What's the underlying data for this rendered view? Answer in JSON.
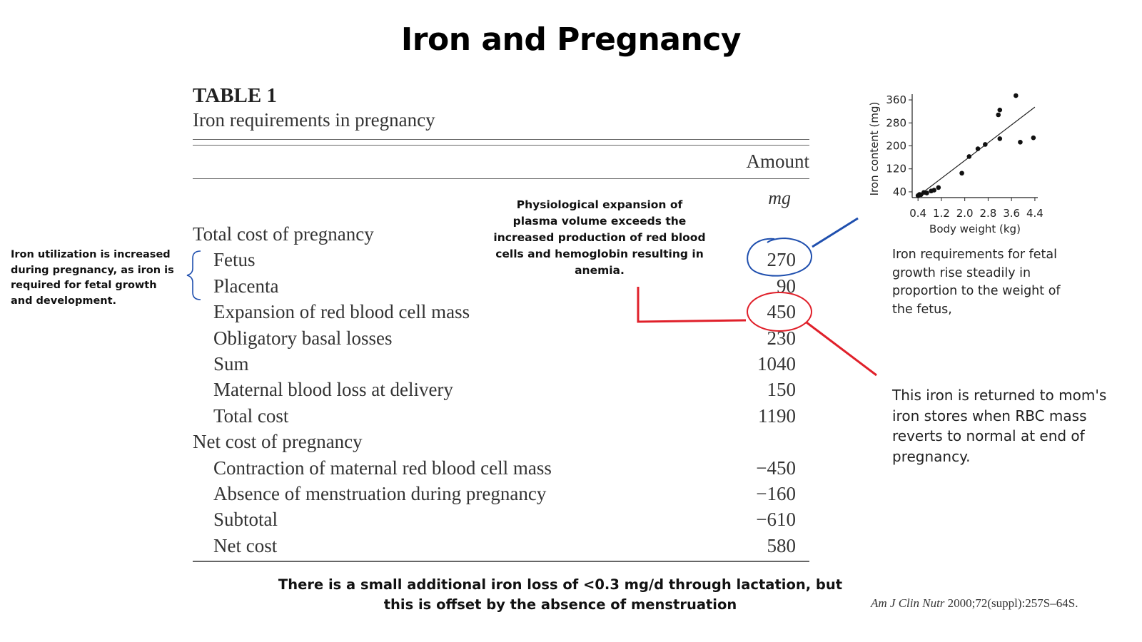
{
  "title": "Iron and Pregnancy",
  "table": {
    "label": "TABLE 1",
    "caption": "Iron requirements in pregnancy",
    "column_header": "Amount",
    "unit": "mg",
    "rows": [
      {
        "label": "Total cost of pregnancy",
        "value": "",
        "indent": false
      },
      {
        "label": "Fetus",
        "value": "270",
        "indent": true
      },
      {
        "label": "Placenta",
        "value": "90",
        "indent": true
      },
      {
        "label": "Expansion of red blood cell mass",
        "value": "450",
        "indent": true
      },
      {
        "label": "Obligatory basal losses",
        "value": "230",
        "indent": true
      },
      {
        "label": "Sum",
        "value": "1040",
        "indent": true
      },
      {
        "label": "Maternal blood loss at delivery",
        "value": "150",
        "indent": true
      },
      {
        "label": "Total cost",
        "value": "1190",
        "indent": true
      },
      {
        "label": "Net cost of pregnancy",
        "value": "",
        "indent": false
      },
      {
        "label": "Contraction of maternal red blood cell mass",
        "value": "−450",
        "indent": true
      },
      {
        "label": "Absence of menstruation during pregnancy",
        "value": "−160",
        "indent": true
      },
      {
        "label": "Subtotal",
        "value": "−610",
        "indent": true
      },
      {
        "label": "Net cost",
        "value": "580",
        "indent": true
      }
    ]
  },
  "notes": {
    "left": "Iron utilization is increased during pregnancy, as iron is required for fetal growth and development.",
    "middle": "Physiological expansion of plasma volume exceeds the increased production of red blood cells and hemoglobin resulting in anemia.",
    "right_top": "Iron requirements for fetal growth rise steadily in proportion to the weight of the fetus,",
    "right_bottom": "This iron is returned to mom's iron stores when RBC mass reverts to normal at end of pregnancy.",
    "bottom": "There is a small additional iron loss of <0.3 mg/d through lactation, but this is offset by the absence of menstruation"
  },
  "citation": {
    "journal": "Am J Clin Nutr",
    "details": " 2000;72(suppl):257S–64S."
  },
  "colors": {
    "blue_annotation": "#1f4fae",
    "red_annotation": "#e0202a"
  },
  "chart_data": {
    "type": "scatter",
    "xlabel": "Body weight (kg)",
    "ylabel": "Iron content (mg)",
    "xlim": [
      0.2,
      4.5
    ],
    "ylim": [
      20,
      380
    ],
    "xticks": [
      "0.4",
      "1.2",
      "2.0",
      "2.8",
      "3.6",
      "4.4"
    ],
    "yticks": [
      "40",
      "120",
      "200",
      "280",
      "360"
    ],
    "points": [
      {
        "x": 0.4,
        "y": 27
      },
      {
        "x": 0.45,
        "y": 31
      },
      {
        "x": 0.5,
        "y": 30
      },
      {
        "x": 0.6,
        "y": 38
      },
      {
        "x": 0.7,
        "y": 36
      },
      {
        "x": 0.85,
        "y": 43
      },
      {
        "x": 0.95,
        "y": 46
      },
      {
        "x": 1.1,
        "y": 55
      },
      {
        "x": 1.9,
        "y": 105
      },
      {
        "x": 2.15,
        "y": 163
      },
      {
        "x": 2.45,
        "y": 190
      },
      {
        "x": 2.7,
        "y": 205
      },
      {
        "x": 3.2,
        "y": 225
      },
      {
        "x": 3.15,
        "y": 308
      },
      {
        "x": 3.2,
        "y": 325
      },
      {
        "x": 3.75,
        "y": 375
      },
      {
        "x": 3.9,
        "y": 213
      },
      {
        "x": 4.35,
        "y": 228
      }
    ],
    "trendline": {
      "x": [
        0.4,
        4.4
      ],
      "y": [
        25,
        335
      ]
    },
    "grid": false
  }
}
